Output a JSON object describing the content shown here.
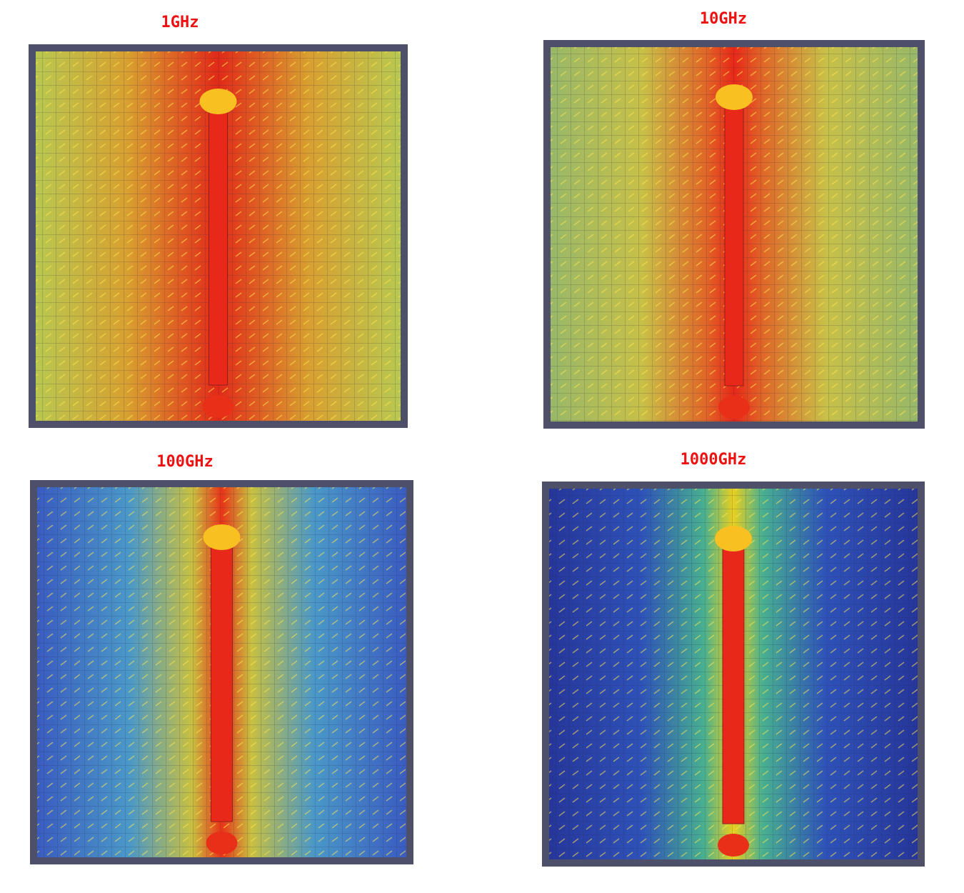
{
  "panels": [
    {
      "label": "1GHz"
    },
    {
      "label": "10GHz"
    },
    {
      "label": "100GHz"
    },
    {
      "label": "1000GHz"
    }
  ]
}
